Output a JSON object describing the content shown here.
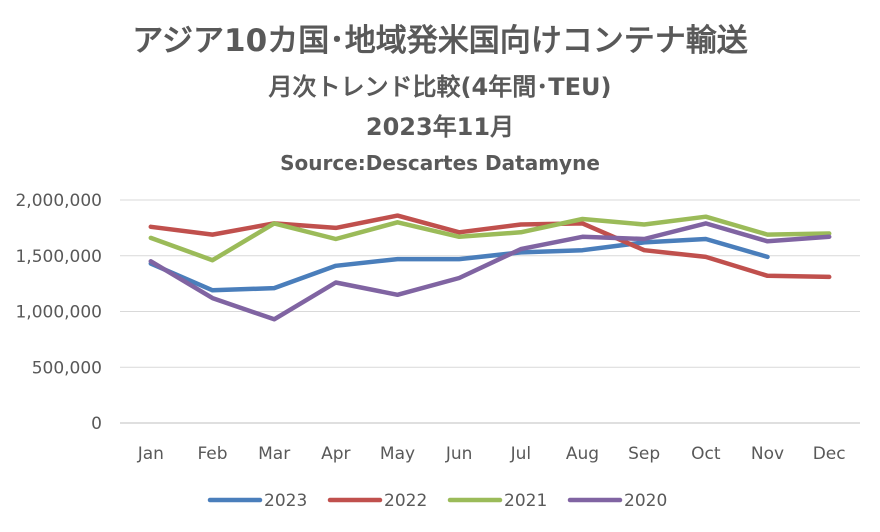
{
  "chart_data": {
    "type": "line",
    "title": "アジア10カ国･地域発米国向けコンテナ輸送",
    "subtitle": "月次トレンド比較(4年間･TEU)",
    "date_label": "2023年11月",
    "source": "Source:Descartes Datamyne",
    "categories": [
      "Jan",
      "Feb",
      "Mar",
      "Apr",
      "May",
      "Jun",
      "Jul",
      "Aug",
      "Sep",
      "Oct",
      "Nov",
      "Dec"
    ],
    "yticks": [
      "0",
      "500,000",
      "1,000,000",
      "1,500,000",
      "2,000,000"
    ],
    "ylim": [
      0,
      2000000
    ],
    "grid": true,
    "legend_position": "bottom",
    "series": [
      {
        "name": "2023",
        "color": "#4a7ebb",
        "values": [
          1430000,
          1190000,
          1210000,
          1410000,
          1470000,
          1470000,
          1530000,
          1550000,
          1620000,
          1650000,
          1490000,
          null
        ]
      },
      {
        "name": "2022",
        "color": "#c0504d",
        "values": [
          1760000,
          1690000,
          1790000,
          1750000,
          1860000,
          1710000,
          1780000,
          1790000,
          1550000,
          1490000,
          1320000,
          1310000
        ]
      },
      {
        "name": "2021",
        "color": "#9bbb59",
        "values": [
          1660000,
          1460000,
          1790000,
          1650000,
          1800000,
          1670000,
          1710000,
          1830000,
          1780000,
          1850000,
          1690000,
          1700000
        ]
      },
      {
        "name": "2020",
        "color": "#8064a2",
        "values": [
          1450000,
          1120000,
          930000,
          1260000,
          1150000,
          1300000,
          1560000,
          1670000,
          1650000,
          1790000,
          1630000,
          1670000
        ]
      }
    ]
  }
}
